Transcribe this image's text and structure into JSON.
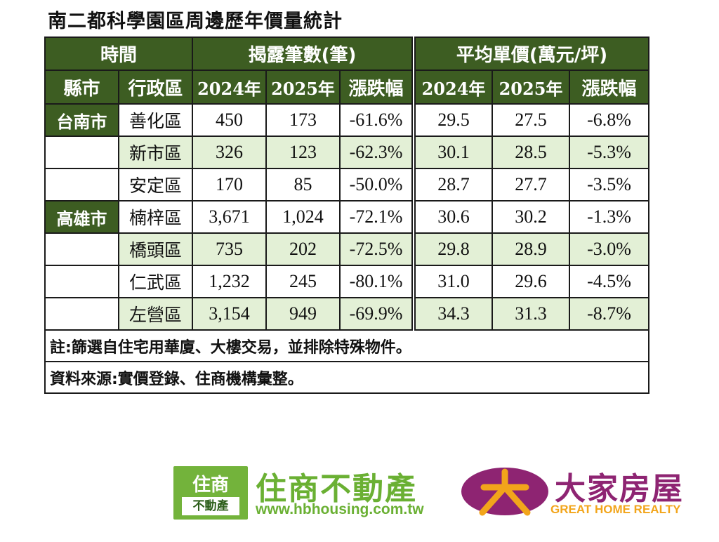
{
  "title": "南二都科學園區周邊歷年價量統計",
  "header": {
    "time": "時間",
    "listings": "揭露筆數(筆)",
    "price": "平均單價(萬元/坪)",
    "county": "縣市",
    "district": "行政區",
    "y2024": "2024年",
    "y2025": "2025年",
    "change": "漲跌幅"
  },
  "rows": [
    {
      "county": "台南市",
      "district": "善化區",
      "c2024": "450",
      "c2025": "173",
      "cchg": "-61.6%",
      "p2024": "29.5",
      "p2025": "27.5",
      "pchg": "-6.8%"
    },
    {
      "county": "",
      "district": "新市區",
      "c2024": "326",
      "c2025": "123",
      "cchg": "-62.3%",
      "p2024": "30.1",
      "p2025": "28.5",
      "pchg": "-5.3%"
    },
    {
      "county": "",
      "district": "安定區",
      "c2024": "170",
      "c2025": "85",
      "cchg": "-50.0%",
      "p2024": "28.7",
      "p2025": "27.7",
      "pchg": "-3.5%"
    },
    {
      "county": "高雄市",
      "district": "楠梓區",
      "c2024": "3,671",
      "c2025": "1,024",
      "cchg": "-72.1%",
      "p2024": "30.6",
      "p2025": "30.2",
      "pchg": "-1.3%"
    },
    {
      "county": "",
      "district": "橋頭區",
      "c2024": "735",
      "c2025": "202",
      "cchg": "-72.5%",
      "p2024": "29.8",
      "p2025": "28.9",
      "pchg": "-3.0%"
    },
    {
      "county": "",
      "district": "仁武區",
      "c2024": "1,232",
      "c2025": "245",
      "cchg": "-80.1%",
      "p2024": "31.0",
      "p2025": "29.6",
      "pchg": "-4.5%"
    },
    {
      "county": "",
      "district": "左營區",
      "c2024": "3,154",
      "c2025": "949",
      "cchg": "-69.9%",
      "p2024": "34.3",
      "p2025": "31.3",
      "pchg": "-8.7%"
    }
  ],
  "note": "註:篩選自住宅用華廈、大樓交易，並排除特殊物件。",
  "source": "資料來源:實價登錄、住商機構彙整。",
  "logos": {
    "hb_box_top": "住商",
    "hb_box_bottom": "不動產",
    "hb_name": "住商不動產",
    "hb_url": "www.hbhousing.com.tw",
    "dj_name": "大家房屋",
    "dj_english": "GREAT HOME REALTY"
  },
  "colors": {
    "header_green": "#3d5d22",
    "row_alt_green": "#e3f0d6",
    "hb_green": "#73b33b",
    "dj_purple": "#8e2472",
    "dj_orange": "#f2a51b"
  }
}
